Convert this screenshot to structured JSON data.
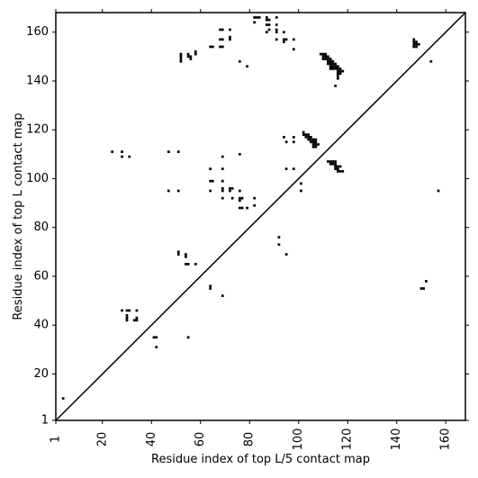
{
  "chart_data": {
    "type": "scatter",
    "title": "",
    "xlabel": "Residue index of top L/5 contact map",
    "ylabel": "Residue index of top L contact map",
    "xlim": [
      1,
      168
    ],
    "ylim": [
      1,
      168
    ],
    "xticks": [
      1,
      20,
      40,
      60,
      80,
      100,
      120,
      140,
      160
    ],
    "yticks": [
      1,
      20,
      40,
      60,
      80,
      100,
      120,
      140,
      160
    ],
    "grid": false,
    "diagonal": true,
    "marker": "square",
    "color": "#000000",
    "points": [
      [
        4,
        10
      ],
      [
        42,
        31
      ],
      [
        41,
        35
      ],
      [
        42,
        35
      ],
      [
        28,
        46
      ],
      [
        30,
        46
      ],
      [
        31,
        46
      ],
      [
        30,
        44
      ],
      [
        30,
        43
      ],
      [
        30,
        42
      ],
      [
        34,
        46
      ],
      [
        34,
        43
      ],
      [
        34,
        42
      ],
      [
        33,
        42
      ],
      [
        55,
        35
      ],
      [
        64,
        55
      ],
      [
        64,
        56
      ],
      [
        69,
        52
      ],
      [
        51,
        70
      ],
      [
        51,
        69
      ],
      [
        54,
        69
      ],
      [
        54,
        68
      ],
      [
        54,
        65
      ],
      [
        55,
        65
      ],
      [
        58,
        65
      ],
      [
        92,
        76
      ],
      [
        92,
        73
      ],
      [
        95,
        69
      ],
      [
        150,
        55
      ],
      [
        151,
        55
      ],
      [
        152,
        58
      ],
      [
        24,
        111
      ],
      [
        28,
        111
      ],
      [
        28,
        109
      ],
      [
        31,
        109
      ],
      [
        47,
        111
      ],
      [
        51,
        111
      ],
      [
        47,
        95
      ],
      [
        51,
        95
      ],
      [
        64,
        104
      ],
      [
        64,
        99
      ],
      [
        65,
        99
      ],
      [
        64,
        95
      ],
      [
        69,
        104
      ],
      [
        69,
        109
      ],
      [
        69,
        99
      ],
      [
        69,
        96
      ],
      [
        69,
        95
      ],
      [
        69,
        92
      ],
      [
        72,
        96
      ],
      [
        73,
        96
      ],
      [
        72,
        95
      ],
      [
        73,
        92
      ],
      [
        76,
        110
      ],
      [
        76,
        95
      ],
      [
        76,
        92
      ],
      [
        77,
        92
      ],
      [
        76,
        91
      ],
      [
        76,
        88
      ],
      [
        77,
        88
      ],
      [
        79,
        88
      ],
      [
        82,
        92
      ],
      [
        82,
        89
      ],
      [
        94,
        117
      ],
      [
        95,
        115
      ],
      [
        98,
        117
      ],
      [
        98,
        115
      ],
      [
        95,
        104
      ],
      [
        98,
        104
      ],
      [
        101,
        98
      ],
      [
        101,
        95
      ],
      [
        157,
        95
      ],
      [
        102,
        118
      ],
      [
        103,
        118
      ],
      [
        104,
        118
      ],
      [
        102,
        119
      ],
      [
        103,
        117
      ],
      [
        104,
        117
      ],
      [
        105,
        117
      ],
      [
        104,
        116
      ],
      [
        105,
        116
      ],
      [
        106,
        116
      ],
      [
        107,
        116
      ],
      [
        105,
        115
      ],
      [
        106,
        115
      ],
      [
        107,
        115
      ],
      [
        106,
        114
      ],
      [
        107,
        114
      ],
      [
        108,
        114
      ],
      [
        106,
        113
      ],
      [
        107,
        113
      ],
      [
        112,
        107
      ],
      [
        113,
        107
      ],
      [
        114,
        107
      ],
      [
        115,
        107
      ],
      [
        113,
        106
      ],
      [
        114,
        106
      ],
      [
        115,
        106
      ],
      [
        115,
        105
      ],
      [
        116,
        105
      ],
      [
        117,
        105
      ],
      [
        115,
        104
      ],
      [
        116,
        104
      ],
      [
        116,
        103
      ],
      [
        117,
        103
      ],
      [
        118,
        103
      ],
      [
        109,
        151
      ],
      [
        110,
        151
      ],
      [
        111,
        151
      ],
      [
        110,
        150
      ],
      [
        111,
        150
      ],
      [
        112,
        150
      ],
      [
        110,
        149
      ],
      [
        111,
        149
      ],
      [
        112,
        149
      ],
      [
        113,
        149
      ],
      [
        112,
        148
      ],
      [
        113,
        148
      ],
      [
        114,
        148
      ],
      [
        112,
        147
      ],
      [
        113,
        147
      ],
      [
        114,
        147
      ],
      [
        115,
        147
      ],
      [
        113,
        146
      ],
      [
        114,
        146
      ],
      [
        115,
        146
      ],
      [
        116,
        146
      ],
      [
        113,
        145
      ],
      [
        114,
        145
      ],
      [
        115,
        145
      ],
      [
        116,
        145
      ],
      [
        117,
        145
      ],
      [
        116,
        144
      ],
      [
        117,
        144
      ],
      [
        118,
        144
      ],
      [
        116,
        143
      ],
      [
        117,
        143
      ],
      [
        116,
        142
      ],
      [
        116,
        141
      ],
      [
        115,
        138
      ],
      [
        147,
        157
      ],
      [
        147,
        156
      ],
      [
        148,
        156
      ],
      [
        147,
        155
      ],
      [
        148,
        155
      ],
      [
        149,
        155
      ],
      [
        147,
        154
      ],
      [
        148,
        154
      ],
      [
        154,
        148
      ],
      [
        52,
        151
      ],
      [
        52,
        150
      ],
      [
        52,
        149
      ],
      [
        52,
        148
      ],
      [
        55,
        151
      ],
      [
        55,
        150
      ],
      [
        56,
        150
      ],
      [
        56,
        149
      ],
      [
        58,
        152
      ],
      [
        58,
        151
      ],
      [
        64,
        154
      ],
      [
        65,
        154
      ],
      [
        68,
        157
      ],
      [
        69,
        157
      ],
      [
        68,
        154
      ],
      [
        69,
        154
      ],
      [
        68,
        161
      ],
      [
        69,
        161
      ],
      [
        72,
        161
      ],
      [
        72,
        158
      ],
      [
        72,
        157
      ],
      [
        76,
        148
      ],
      [
        79,
        146
      ],
      [
        82,
        166
      ],
      [
        83,
        166
      ],
      [
        84,
        166
      ],
      [
        82,
        164
      ],
      [
        87,
        166
      ],
      [
        87,
        165
      ],
      [
        88,
        165
      ],
      [
        87,
        163
      ],
      [
        88,
        163
      ],
      [
        87,
        160
      ],
      [
        88,
        161
      ],
      [
        91,
        166
      ],
      [
        91,
        163
      ],
      [
        91,
        161
      ],
      [
        91,
        160
      ],
      [
        91,
        157
      ],
      [
        94,
        160
      ],
      [
        94,
        157
      ],
      [
        95,
        157
      ],
      [
        94,
        156
      ],
      [
        98,
        157
      ],
      [
        98,
        153
      ]
    ]
  }
}
